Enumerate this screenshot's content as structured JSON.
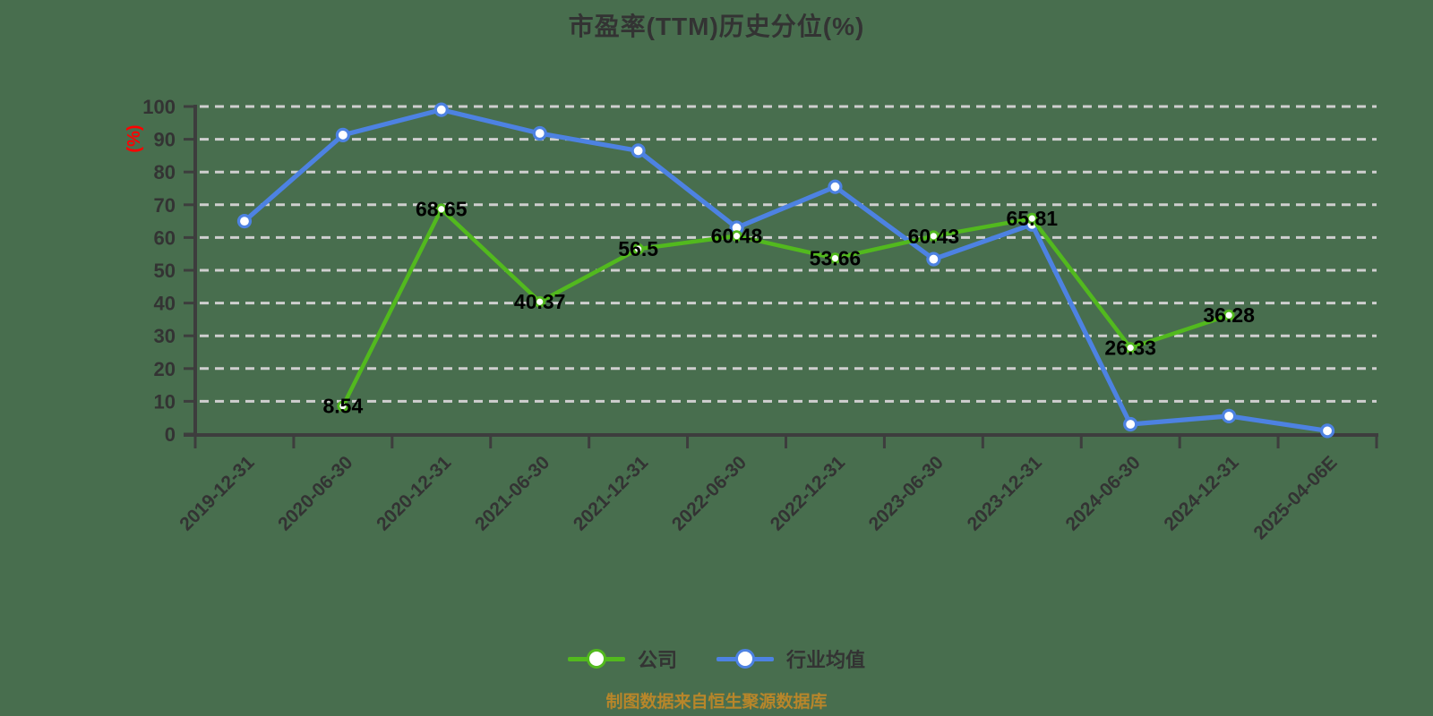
{
  "page": {
    "background_color": "#486e4e"
  },
  "chart": {
    "title_color": "#333333",
    "axis_color": "#3d3d3d",
    "tick_label_color": "#333333",
    "grid_color": "#cfcfcf",
    "data_label_color": "#000000",
    "y_unit_label_color": "#ff0000",
    "marker_fill": "#ffffff"
  },
  "chart_data": {
    "type": "line",
    "title": "市盈率(TTM)历史分位(%)",
    "xlabel": "",
    "ylabel": "(%)",
    "ylim": [
      0,
      100
    ],
    "ytick_step": 10,
    "grid": "horizontal-dashed",
    "legend_position": "bottom",
    "categories": [
      "2019-12-31",
      "2020-06-30",
      "2020-12-31",
      "2021-06-30",
      "2021-12-31",
      "2022-06-30",
      "2022-12-31",
      "2023-06-30",
      "2023-12-31",
      "2024-06-30",
      "2024-12-31",
      "2025-04-06E"
    ],
    "series": [
      {
        "name": "公司",
        "color": "#52b91e",
        "marker": "circle-white",
        "show_point_labels": true,
        "values": [
          null,
          8.54,
          68.65,
          40.37,
          56.5,
          60.48,
          53.66,
          60.43,
          65.81,
          26.33,
          36.28,
          null
        ],
        "point_labels": [
          "",
          "8.54",
          "68.65",
          "40.37",
          "56.5",
          "60.48",
          "53.66",
          "60.43",
          "65.81",
          "26.33",
          "36.28",
          ""
        ]
      },
      {
        "name": "行业均值",
        "color": "#4d82e2",
        "marker": "circle-white",
        "show_point_labels": false,
        "values": [
          65,
          91.3,
          99,
          91.8,
          86.5,
          63,
          75.5,
          53.4,
          64,
          3,
          5.5,
          1
        ]
      }
    ]
  },
  "footer": {
    "note": "制图数据来自恒生聚源数据库",
    "color": "#b8862a"
  }
}
